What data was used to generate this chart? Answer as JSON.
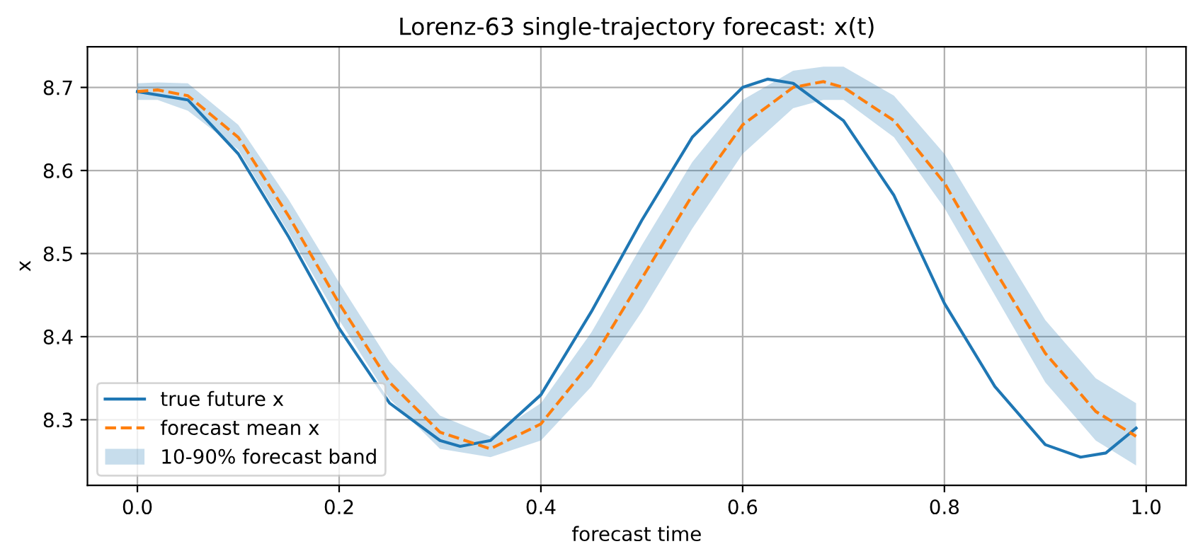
{
  "chart_data": {
    "type": "line",
    "title": "Lorenz-63 single-trajectory forecast: x(t)",
    "xlabel": "forecast time",
    "ylabel": "x",
    "xlim": [
      -0.0495,
      1.0395
    ],
    "ylim": [
      8.221,
      8.749
    ],
    "xticks": [
      {
        "value": 0,
        "label": "0.0"
      },
      0.2,
      0.4,
      0.6,
      0.8,
      {
        "value": 1,
        "label": "1.0"
      }
    ],
    "yticks": [
      8.3,
      8.4,
      8.5,
      8.6,
      8.7
    ],
    "grid": true,
    "legend": "bottom left",
    "marker": "none",
    "annotations": [
      "10-90% forecast band"
    ],
    "series": [
      {
        "name": "true future x",
        "color": "#1f77b4",
        "line_style": "solid",
        "x": [
          0,
          0.05,
          0.1,
          0.15,
          0.2,
          0.25,
          0.3,
          0.32,
          0.35,
          0.4,
          0.45,
          0.5,
          0.55,
          0.6,
          0.625,
          0.65,
          0.7,
          0.75,
          0.8,
          0.85,
          0.9,
          0.935,
          0.96,
          0.99
        ],
        "values": [
          8.695,
          8.685,
          8.62,
          8.52,
          8.41,
          8.32,
          8.275,
          8.268,
          8.275,
          8.33,
          8.43,
          8.54,
          8.64,
          8.7,
          8.71,
          8.705,
          8.66,
          8.57,
          8.44,
          8.34,
          8.27,
          8.255,
          8.26,
          8.29
        ]
      },
      {
        "name": "forecast mean x",
        "color": "#ff7f0e",
        "line_style": "dashed",
        "x": [
          0,
          0.02,
          0.05,
          0.1,
          0.15,
          0.2,
          0.25,
          0.3,
          0.35,
          0.4,
          0.45,
          0.5,
          0.55,
          0.6,
          0.65,
          0.68,
          0.7,
          0.75,
          0.8,
          0.85,
          0.9,
          0.95,
          0.99
        ],
        "values": [
          8.695,
          8.697,
          8.69,
          8.64,
          8.545,
          8.44,
          8.345,
          8.285,
          8.265,
          8.295,
          8.37,
          8.47,
          8.57,
          8.655,
          8.7,
          8.707,
          8.7,
          8.66,
          8.585,
          8.48,
          8.38,
          8.31,
          8.28
        ],
        "lower": [
          8.685,
          8.685,
          8.672,
          8.625,
          8.525,
          8.42,
          8.325,
          8.265,
          8.255,
          8.275,
          8.34,
          8.43,
          8.53,
          8.62,
          8.675,
          8.685,
          8.685,
          8.64,
          8.555,
          8.45,
          8.345,
          8.275,
          8.245
        ],
        "upper": [
          8.705,
          8.706,
          8.705,
          8.655,
          8.565,
          8.465,
          8.37,
          8.305,
          8.28,
          8.32,
          8.405,
          8.51,
          8.61,
          8.685,
          8.72,
          8.725,
          8.725,
          8.69,
          8.62,
          8.52,
          8.42,
          8.35,
          8.32
        ]
      }
    ]
  }
}
